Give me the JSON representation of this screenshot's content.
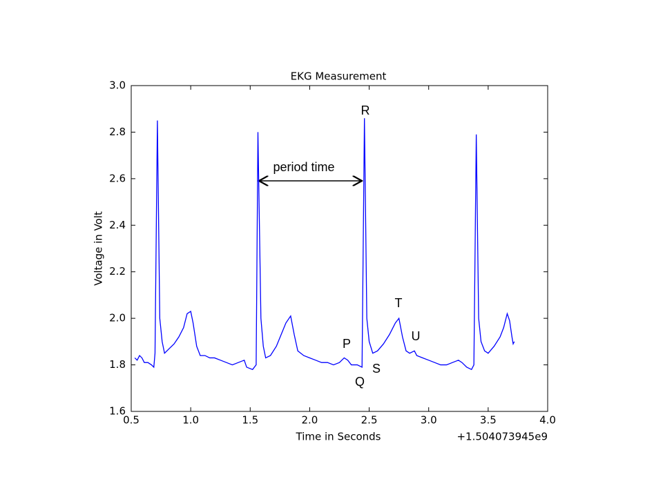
{
  "chart_data": {
    "type": "line",
    "title": "EKG Measurement",
    "xlabel": "Time in Seconds",
    "ylabel": "Voltage in Volt",
    "x_offset_text": "+1.504073945e9",
    "x": [
      0.53,
      0.55,
      0.57,
      0.59,
      0.61,
      0.64,
      0.67,
      0.69,
      0.7,
      0.72,
      0.74,
      0.76,
      0.78,
      0.82,
      0.86,
      0.9,
      0.94,
      0.97,
      1.0,
      1.02,
      1.05,
      1.08,
      1.12,
      1.16,
      1.2,
      1.25,
      1.3,
      1.35,
      1.4,
      1.45,
      1.47,
      1.52,
      1.55,
      1.565,
      1.59,
      1.61,
      1.63,
      1.67,
      1.72,
      1.76,
      1.8,
      1.84,
      1.87,
      1.9,
      1.95,
      2.0,
      2.05,
      2.1,
      2.15,
      2.2,
      2.25,
      2.29,
      2.32,
      2.35,
      2.4,
      2.44,
      2.46,
      2.48,
      2.5,
      2.53,
      2.57,
      2.62,
      2.67,
      2.72,
      2.75,
      2.78,
      2.81,
      2.84,
      2.88,
      2.9,
      2.95,
      3.0,
      3.05,
      3.1,
      3.15,
      3.2,
      3.25,
      3.28,
      3.32,
      3.36,
      3.38,
      3.4,
      3.42,
      3.44,
      3.47,
      3.5,
      3.55,
      3.6,
      3.63,
      3.66,
      3.68,
      3.7,
      3.71,
      3.72
    ],
    "series": [
      {
        "color": "#0000ff",
        "values": [
          1.83,
          1.82,
          1.84,
          1.83,
          1.81,
          1.81,
          1.8,
          1.79,
          1.85,
          2.85,
          2.0,
          1.9,
          1.85,
          1.87,
          1.89,
          1.92,
          1.96,
          2.02,
          2.03,
          1.98,
          1.88,
          1.84,
          1.84,
          1.83,
          1.83,
          1.82,
          1.81,
          1.8,
          1.81,
          1.82,
          1.79,
          1.78,
          1.8,
          2.8,
          2.0,
          1.88,
          1.83,
          1.84,
          1.88,
          1.93,
          1.98,
          2.01,
          1.93,
          1.86,
          1.84,
          1.83,
          1.82,
          1.81,
          1.81,
          1.8,
          1.81,
          1.83,
          1.82,
          1.8,
          1.8,
          1.79,
          2.86,
          2.0,
          1.9,
          1.85,
          1.86,
          1.89,
          1.93,
          1.98,
          2.0,
          1.92,
          1.86,
          1.85,
          1.86,
          1.84,
          1.83,
          1.82,
          1.81,
          1.8,
          1.8,
          1.81,
          1.82,
          1.81,
          1.79,
          1.78,
          1.8,
          2.79,
          2.0,
          1.9,
          1.86,
          1.85,
          1.88,
          1.92,
          1.96,
          2.02,
          1.99,
          1.92,
          1.89,
          1.9
        ]
      }
    ],
    "xlim": [
      0.5,
      4.0
    ],
    "ylim": [
      1.6,
      3.0
    ],
    "xticks": [
      0.5,
      {
        "value": 1,
        "label": "1.0"
      },
      1.5,
      {
        "value": 2,
        "label": "2.0"
      },
      2.5,
      {
        "value": 3,
        "label": "3.0"
      },
      3.5,
      {
        "value": 4,
        "label": "4.0"
      }
    ],
    "yticks": [
      1.6,
      1.8,
      {
        "value": 2,
        "label": "2.0"
      },
      2.2,
      2.4,
      2.6,
      2.8,
      {
        "value": 3,
        "label": "3.0"
      }
    ],
    "annotations": [
      "period time",
      "R",
      "T",
      "U",
      "P",
      "S",
      "Q"
    ]
  }
}
